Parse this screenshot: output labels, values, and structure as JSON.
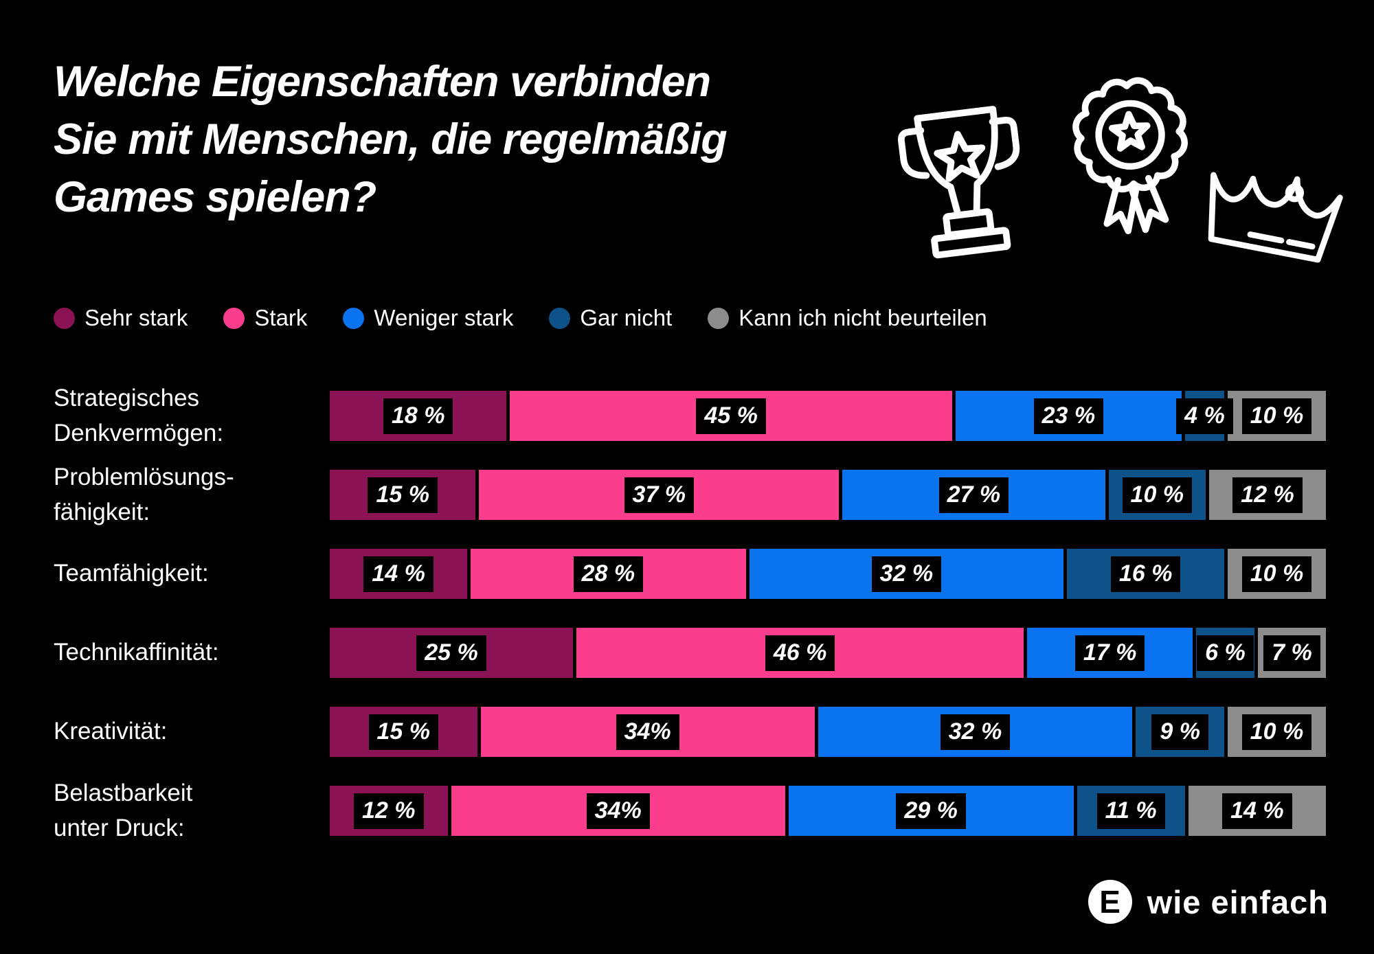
{
  "title": {
    "lines": [
      "Welche Eigenschaften verbinden",
      "Sie mit Menschen, die regelmäßig",
      "Games spielen?"
    ]
  },
  "icons": [
    "trophy-icon",
    "medal-icon",
    "crown-icon"
  ],
  "logo": {
    "mark": "E",
    "text": "wie einfach"
  },
  "colors": {
    "background": "#000000",
    "text": "#ffffff",
    "sehr_stark": "#8B1254",
    "stark": "#FA3D8D",
    "weniger_stark": "#0A73F0",
    "gar_nicht": "#0D5288",
    "kann_nicht_beurteilen": "#8C8C8C",
    "value_label_bg": "#000000"
  },
  "chart_data": {
    "type": "bar",
    "stacked": true,
    "orientation": "horizontal",
    "unit": "%",
    "legend_position": "top",
    "grid": false,
    "series_names": [
      "Sehr stark",
      "Stark",
      "Weniger stark",
      "Gar nicht",
      "Kann ich nicht beurteilen"
    ],
    "series_colors": [
      "#8B1254",
      "#FA3D8D",
      "#0A73F0",
      "#0D5288",
      "#8C8C8C"
    ],
    "categories": [
      "Strategisches Denkvermögen:",
      "Problemlösungs-fähigkeit:",
      "Teamfähigkeit:",
      "Technikaffinität:",
      "Kreativität:",
      "Belastbarkeit unter Druck:"
    ],
    "rows": [
      {
        "label_lines": [
          "Strategisches",
          "Denkvermögen:"
        ],
        "values": [
          18,
          45,
          23,
          4,
          10
        ],
        "value_labels": [
          "18 %",
          "45 %",
          "23 %",
          "4 %",
          "10 %"
        ]
      },
      {
        "label_lines": [
          "Problemlösungs-",
          "fähigkeit:"
        ],
        "values": [
          15,
          37,
          27,
          10,
          12
        ],
        "value_labels": [
          "15 %",
          "37 %",
          "27 %",
          "10 %",
          "12 %"
        ]
      },
      {
        "label_lines": [
          "Teamfähigkeit:"
        ],
        "values": [
          14,
          28,
          32,
          16,
          10
        ],
        "value_labels": [
          "14 %",
          "28 %",
          "32 %",
          "16 %",
          "10 %"
        ]
      },
      {
        "label_lines": [
          "Technikaffinität:"
        ],
        "values": [
          25,
          46,
          17,
          6,
          7
        ],
        "value_labels": [
          "25 %",
          "46 %",
          "17 %",
          "6 %",
          "7 %"
        ]
      },
      {
        "label_lines": [
          "Kreativität:"
        ],
        "values": [
          15,
          34,
          32,
          9,
          10
        ],
        "value_labels": [
          "15 %",
          "34%",
          "32 %",
          "9 %",
          "10 %"
        ]
      },
      {
        "label_lines": [
          "Belastbarkeit",
          "unter Druck:"
        ],
        "values": [
          12,
          34,
          29,
          11,
          14
        ],
        "value_labels": [
          "12 %",
          "34%",
          "29 %",
          "11 %",
          "14 %"
        ]
      }
    ]
  }
}
